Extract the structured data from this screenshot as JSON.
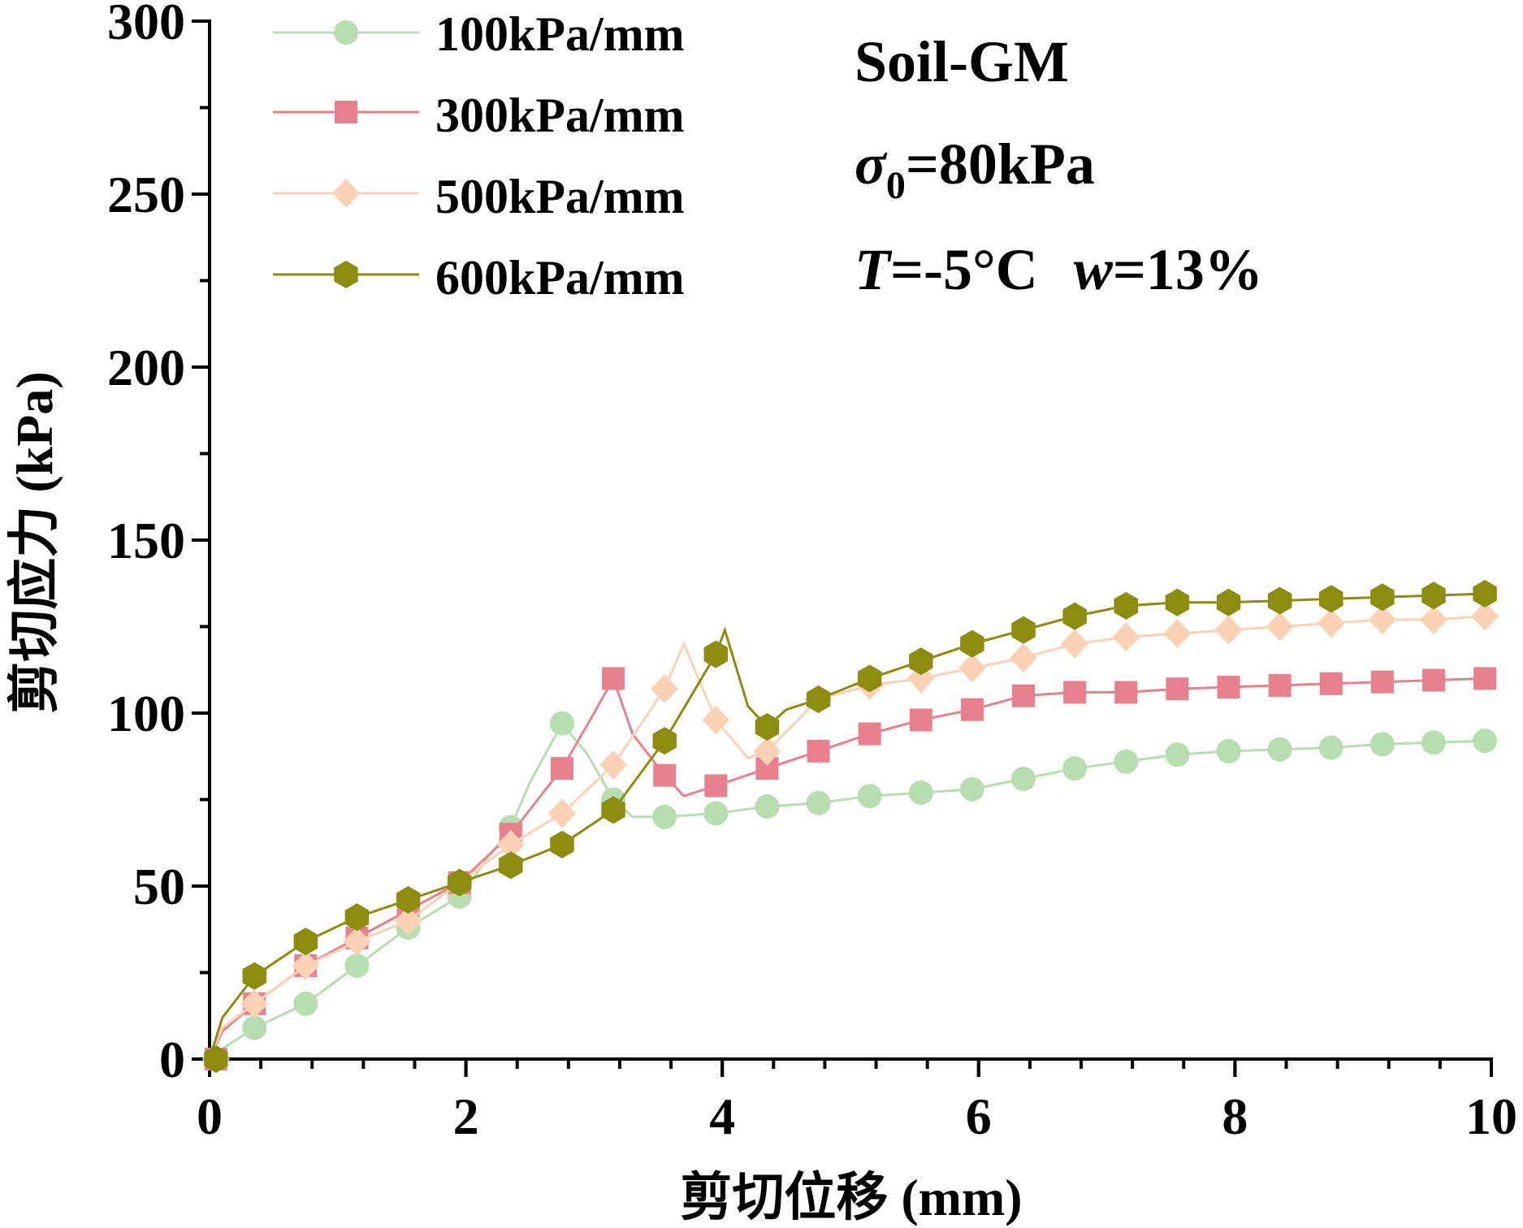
{
  "chart_data": {
    "type": "line",
    "xlabel": "剪切位移 (mm)",
    "ylabel": "剪切应力 (kPa)",
    "xlim": [
      0,
      10
    ],
    "ylim": [
      0,
      300
    ],
    "x_ticks": [
      "0",
      "2",
      "4",
      "6",
      "8",
      "10"
    ],
    "y_ticks": [
      "0",
      "50",
      "100",
      "150",
      "200",
      "250",
      "300"
    ],
    "annotations": {
      "material": "Soil-GM",
      "sigma_symbol": "σ",
      "sigma_sub": "0",
      "sigma_value": "=80kPa",
      "temp_symbol": "T",
      "temp_value": "=-5°C",
      "moisture_symbol": "w",
      "moisture_value": "=13%"
    },
    "series": [
      {
        "name": "100kPa/mm",
        "color": "#B7DDB0",
        "marker": "circle",
        "line": [
          [
            0,
            0
          ],
          [
            0.1,
            3
          ],
          [
            0.35,
            9
          ],
          [
            0.75,
            16
          ],
          [
            1.15,
            27
          ],
          [
            1.55,
            38
          ],
          [
            1.95,
            47
          ],
          [
            2.35,
            67
          ],
          [
            2.5,
            80
          ],
          [
            2.75,
            97
          ],
          [
            2.95,
            88
          ],
          [
            3.15,
            75
          ],
          [
            3.3,
            70
          ],
          [
            3.55,
            70
          ],
          [
            3.95,
            71
          ],
          [
            4.35,
            73
          ],
          [
            4.75,
            74
          ],
          [
            5.15,
            76
          ],
          [
            5.55,
            77
          ],
          [
            5.95,
            78
          ],
          [
            6.35,
            81
          ],
          [
            6.75,
            84
          ],
          [
            7.15,
            86
          ],
          [
            7.55,
            88
          ],
          [
            7.95,
            89
          ],
          [
            8.35,
            89.5
          ],
          [
            8.75,
            90
          ],
          [
            9.15,
            91
          ],
          [
            9.55,
            91.5
          ],
          [
            9.95,
            92
          ]
        ],
        "markers": [
          [
            0.05,
            0
          ],
          [
            0.35,
            9
          ],
          [
            0.75,
            16
          ],
          [
            1.15,
            27
          ],
          [
            1.55,
            38
          ],
          [
            1.95,
            47
          ],
          [
            2.35,
            67
          ],
          [
            2.75,
            97
          ],
          [
            3.15,
            75
          ],
          [
            3.55,
            70
          ],
          [
            3.95,
            71
          ],
          [
            4.35,
            73
          ],
          [
            4.75,
            74
          ],
          [
            5.15,
            76
          ],
          [
            5.55,
            77
          ],
          [
            5.95,
            78
          ],
          [
            6.35,
            81
          ],
          [
            6.75,
            84
          ],
          [
            7.15,
            86
          ],
          [
            7.55,
            88
          ],
          [
            7.95,
            89
          ],
          [
            8.35,
            89.5
          ],
          [
            8.75,
            90
          ],
          [
            9.15,
            91
          ],
          [
            9.55,
            91.5
          ],
          [
            9.95,
            92
          ]
        ]
      },
      {
        "name": "300kPa/mm",
        "color": "#E9808E",
        "marker": "square",
        "line": [
          [
            0,
            0
          ],
          [
            0.1,
            8
          ],
          [
            0.35,
            16
          ],
          [
            0.75,
            27
          ],
          [
            1.15,
            35
          ],
          [
            1.55,
            43
          ],
          [
            1.95,
            51
          ],
          [
            2.35,
            65
          ],
          [
            2.75,
            84
          ],
          [
            3.0,
            100
          ],
          [
            3.15,
            110
          ],
          [
            3.3,
            94
          ],
          [
            3.55,
            82
          ],
          [
            3.7,
            76
          ],
          [
            3.95,
            79
          ],
          [
            4.35,
            84
          ],
          [
            4.75,
            89
          ],
          [
            5.15,
            94
          ],
          [
            5.55,
            98
          ],
          [
            5.95,
            101
          ],
          [
            6.35,
            105
          ],
          [
            6.75,
            106
          ],
          [
            7.15,
            106
          ],
          [
            7.55,
            107
          ],
          [
            7.95,
            107.5
          ],
          [
            8.35,
            108
          ],
          [
            8.75,
            108.5
          ],
          [
            9.15,
            109
          ],
          [
            9.55,
            109.5
          ],
          [
            9.95,
            110
          ]
        ],
        "markers": [
          [
            0.05,
            0
          ],
          [
            0.35,
            16
          ],
          [
            0.75,
            27
          ],
          [
            1.15,
            35
          ],
          [
            1.55,
            43
          ],
          [
            1.95,
            51
          ],
          [
            2.35,
            65
          ],
          [
            2.75,
            84
          ],
          [
            3.15,
            110
          ],
          [
            3.55,
            82
          ],
          [
            3.95,
            79
          ],
          [
            4.35,
            84
          ],
          [
            4.75,
            89
          ],
          [
            5.15,
            94
          ],
          [
            5.55,
            98
          ],
          [
            5.95,
            101
          ],
          [
            6.35,
            105
          ],
          [
            6.75,
            106
          ],
          [
            7.15,
            106
          ],
          [
            7.55,
            107
          ],
          [
            7.95,
            107.5
          ],
          [
            8.35,
            108
          ],
          [
            8.75,
            108.5
          ],
          [
            9.15,
            109
          ],
          [
            9.55,
            109.5
          ],
          [
            9.95,
            110
          ]
        ]
      },
      {
        "name": "500kPa/mm",
        "color": "#FCD2B6",
        "marker": "diamond",
        "line": [
          [
            0,
            0
          ],
          [
            0.1,
            9
          ],
          [
            0.35,
            16
          ],
          [
            0.75,
            27
          ],
          [
            1.15,
            34
          ],
          [
            1.55,
            40
          ],
          [
            1.95,
            51
          ],
          [
            2.35,
            62
          ],
          [
            2.75,
            71
          ],
          [
            3.15,
            85
          ],
          [
            3.55,
            107
          ],
          [
            3.7,
            120
          ],
          [
            3.95,
            98
          ],
          [
            4.2,
            87
          ],
          [
            4.35,
            89
          ],
          [
            4.75,
            104
          ],
          [
            5.15,
            108
          ],
          [
            5.55,
            110
          ],
          [
            5.95,
            113
          ],
          [
            6.35,
            116
          ],
          [
            6.75,
            120
          ],
          [
            7.15,
            122
          ],
          [
            7.55,
            123
          ],
          [
            7.95,
            124
          ],
          [
            8.35,
            125
          ],
          [
            8.75,
            126
          ],
          [
            9.15,
            127
          ],
          [
            9.55,
            127
          ],
          [
            9.95,
            128
          ]
        ],
        "markers": [
          [
            0.05,
            0
          ],
          [
            0.35,
            16
          ],
          [
            0.75,
            27
          ],
          [
            1.15,
            34
          ],
          [
            1.55,
            40
          ],
          [
            1.95,
            51
          ],
          [
            2.35,
            62
          ],
          [
            2.75,
            71
          ],
          [
            3.15,
            85
          ],
          [
            3.55,
            107
          ],
          [
            3.95,
            98
          ],
          [
            4.35,
            89
          ],
          [
            4.75,
            104
          ],
          [
            5.15,
            108
          ],
          [
            5.55,
            110
          ],
          [
            5.95,
            113
          ],
          [
            6.35,
            116
          ],
          [
            6.75,
            120
          ],
          [
            7.15,
            122
          ],
          [
            7.55,
            123
          ],
          [
            7.95,
            124
          ],
          [
            8.35,
            125
          ],
          [
            8.75,
            126
          ],
          [
            9.15,
            127
          ],
          [
            9.55,
            127
          ],
          [
            9.95,
            128
          ]
        ]
      },
      {
        "name": "600kPa/mm",
        "color": "#8C8C0F",
        "marker": "hexagon",
        "line": [
          [
            0,
            0
          ],
          [
            0.1,
            12
          ],
          [
            0.35,
            24
          ],
          [
            0.75,
            34
          ],
          [
            1.15,
            41
          ],
          [
            1.55,
            46
          ],
          [
            1.95,
            51
          ],
          [
            2.35,
            56
          ],
          [
            2.75,
            62
          ],
          [
            3.15,
            72
          ],
          [
            3.55,
            92
          ],
          [
            3.95,
            117
          ],
          [
            4.02,
            124
          ],
          [
            4.2,
            102
          ],
          [
            4.35,
            96
          ],
          [
            4.5,
            101
          ],
          [
            4.75,
            104
          ],
          [
            5.15,
            110
          ],
          [
            5.55,
            115
          ],
          [
            5.95,
            120
          ],
          [
            6.35,
            124
          ],
          [
            6.75,
            128
          ],
          [
            7.15,
            131
          ],
          [
            7.55,
            132
          ],
          [
            7.95,
            132
          ],
          [
            8.35,
            132.5
          ],
          [
            8.75,
            133
          ],
          [
            9.15,
            133.5
          ],
          [
            9.55,
            134
          ],
          [
            9.95,
            134.5
          ]
        ],
        "markers": [
          [
            0.05,
            0
          ],
          [
            0.35,
            24
          ],
          [
            0.75,
            34
          ],
          [
            1.15,
            41
          ],
          [
            1.55,
            46
          ],
          [
            1.95,
            51
          ],
          [
            2.35,
            56
          ],
          [
            2.75,
            62
          ],
          [
            3.15,
            72
          ],
          [
            3.55,
            92
          ],
          [
            3.95,
            117
          ],
          [
            4.35,
            96
          ],
          [
            4.75,
            104
          ],
          [
            5.15,
            110
          ],
          [
            5.55,
            115
          ],
          [
            5.95,
            120
          ],
          [
            6.35,
            124
          ],
          [
            6.75,
            128
          ],
          [
            7.15,
            131
          ],
          [
            7.55,
            132
          ],
          [
            7.95,
            132
          ],
          [
            8.35,
            132.5
          ],
          [
            8.75,
            133
          ],
          [
            9.15,
            133.5
          ],
          [
            9.55,
            134
          ],
          [
            9.95,
            134.5
          ]
        ]
      }
    ]
  }
}
